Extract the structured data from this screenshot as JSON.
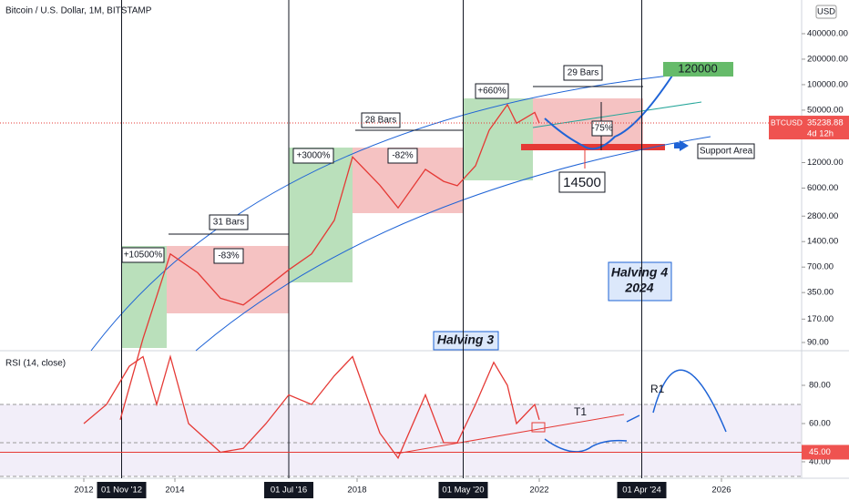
{
  "chart_data": [
    {
      "type": "line",
      "title": "Bitcoin / U.S. Dollar, 1M, BITSTAMP",
      "color": "#e53935",
      "log_scale": true,
      "x": [
        2012.8,
        2013.3,
        2013.9,
        2014.5,
        2015.0,
        2015.5,
        2016.0,
        2016.5,
        2017.0,
        2017.5,
        2017.9,
        2018.5,
        2018.9,
        2019.5,
        2019.9,
        2020.2,
        2020.6,
        2020.9,
        2021.3,
        2021.5,
        2021.9,
        2022.0
      ],
      "values": [
        11,
        100,
        1000,
        600,
        300,
        250,
        400,
        650,
        1000,
        2500,
        14000,
        6500,
        3500,
        10000,
        7200,
        6400,
        11000,
        29000,
        58000,
        35000,
        47000,
        35238.88
      ],
      "xlim": [
        2010.16,
        2027.76
      ],
      "xticks": [
        2012,
        2014,
        2018,
        2022,
        2026
      ],
      "markers": [
        {
          "value": 2012.83,
          "label": "01 Nov '12"
        },
        {
          "value": 2016.5,
          "label": "01 Jul '16"
        },
        {
          "value": 2020.33,
          "label": "01 May '20"
        },
        {
          "value": 2024.25,
          "label": "01 Apr '24"
        }
      ],
      "ylim": [
        72,
        1000000
      ],
      "yticks": [
        {
          "value": 400000,
          "label": "400000.00"
        },
        {
          "value": 200000,
          "label": "200000.00"
        },
        {
          "value": 100000,
          "label": "100000.00"
        },
        {
          "value": 50000,
          "label": "50000.00"
        },
        {
          "value": 12000,
          "label": "12000.00"
        },
        {
          "value": 6000,
          "label": "6000.00"
        },
        {
          "value": 2800,
          "label": "2800.00"
        },
        {
          "value": 1400,
          "label": "1400.00"
        },
        {
          "value": 700,
          "label": "700.00"
        },
        {
          "value": 350,
          "label": "350.00"
        },
        {
          "value": 170,
          "label": "170.00"
        },
        {
          "value": 90,
          "label": "90.00"
        }
      ],
      "currency": "USD",
      "symbol": "BTCUSD",
      "last_price": {
        "value": 35238.88,
        "label": "35238.88"
      },
      "countdown": "4d 12h",
      "annotations": [
        "+10500%",
        "-83%",
        "31 Bars",
        "+3000%",
        "-82%",
        "28 Bars",
        "+660%",
        "29 Bars",
        "120000",
        "-75%",
        "14500",
        "Support Area",
        "Halving 4",
        "2024",
        "Halving 3"
      ]
    },
    {
      "type": "line",
      "title": "RSI (14, close)",
      "color": "#e53935",
      "x": [
        2012.0,
        2012.5,
        2013.0,
        2013.3,
        2013.6,
        2013.9,
        2014.3,
        2015.0,
        2015.5,
        2016.0,
        2016.5,
        2017.0,
        2017.5,
        2017.9,
        2018.5,
        2018.9,
        2019.5,
        2019.9,
        2020.2,
        2020.6,
        2021.0,
        2021.3,
        2021.5,
        2021.9,
        2022.0
      ],
      "values": [
        60,
        70,
        90,
        95,
        70,
        95,
        60,
        45,
        47,
        60,
        75,
        70,
        85,
        95,
        55,
        42,
        75,
        50,
        50,
        70,
        92,
        80,
        60,
        70,
        62
      ],
      "ylim": [
        31.4,
        98.1
      ],
      "yticks": [
        {
          "value": 80,
          "label": "80.00"
        },
        {
          "value": 60,
          "label": "60.00"
        },
        {
          "value": 40,
          "label": "40.00"
        }
      ],
      "level": {
        "value": 45,
        "label": "45.00"
      },
      "annotations": [
        "T1",
        "R1"
      ]
    }
  ]
}
